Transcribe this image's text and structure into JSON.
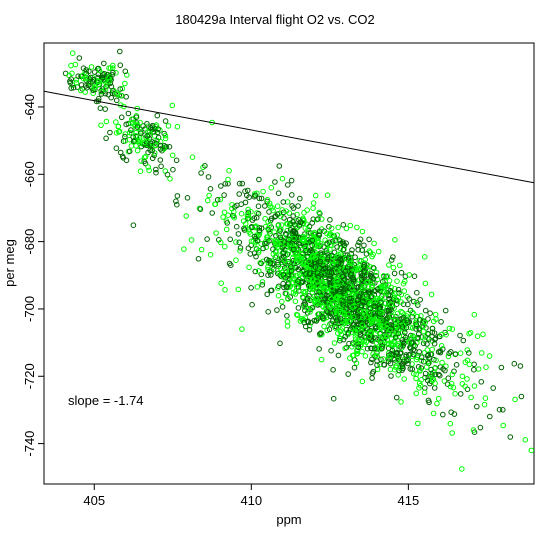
{
  "chart_data": {
    "type": "scatter",
    "title": "180429a   Interval flight O2 vs. CO2",
    "xlabel": "ppm",
    "ylabel": "per meg",
    "xlim": [
      403.4,
      419.0
    ],
    "ylim": [
      -752.0,
      -621.0
    ],
    "xticks": [
      405,
      410,
      415
    ],
    "yticks": [
      -740,
      -720,
      -700,
      -680,
      -660,
      -640
    ],
    "grid": false,
    "legend": "none",
    "point_style": "open circles",
    "colors": {
      "dark": "#006400",
      "light": "#00ff00",
      "line": "#000000"
    },
    "series": [
      {
        "clusters": [
          {
            "cx": 405.1,
            "cy": -632.5,
            "sx": 0.45,
            "sy": 3.0,
            "rho": 0.0,
            "n": 130
          },
          {
            "cx": 406.6,
            "cy": -650.0,
            "sx": 0.55,
            "sy": 5.0,
            "rho": -0.45,
            "n": 150
          },
          {
            "cx": 412.8,
            "cy": -694.0,
            "sx": 1.45,
            "sy": 12.0,
            "rho": -0.8,
            "n": 1700
          },
          {
            "cx": 413.2,
            "cy": -697.0,
            "sx": 2.3,
            "sy": 17.0,
            "rho": -0.78,
            "n": 550
          }
        ],
        "outliers": [
          [
            416.7,
            -747.5
          ],
          [
            418.6,
            -726.0
          ],
          [
            417.7,
            -723.5
          ],
          [
            409.7,
            -706.0
          ],
          [
            408.1,
            -679.5
          ],
          [
            407.6,
            -668.0
          ],
          [
            415.3,
            -734.0
          ]
        ]
      }
    ],
    "fit_line": {
      "slope": -1.74,
      "intercept": 0,
      "x_at_y_minus_640": 406.07
    },
    "annotation": "slope =  -1.74"
  }
}
